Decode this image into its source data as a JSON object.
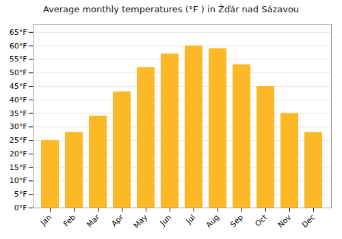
{
  "chart_data": {
    "type": "bar",
    "title": "Average monthly temperatures (°F ) in Žďár nad Sázavou",
    "categories": [
      "Jan",
      "Feb",
      "Mar",
      "Apr",
      "May",
      "Jun",
      "Jul",
      "Aug",
      "Sep",
      "Oct",
      "Nov",
      "Dec"
    ],
    "values": [
      25,
      28,
      34,
      43,
      52,
      57,
      60,
      59,
      53,
      45,
      35,
      28
    ],
    "color": "#FDB827",
    "ylim": [
      0,
      68
    ],
    "yticks": [
      {
        "value": 0,
        "label": "0°F"
      },
      {
        "value": 5,
        "label": "5°F"
      },
      {
        "value": 10,
        "label": "10°F"
      },
      {
        "value": 15,
        "label": "15°F"
      },
      {
        "value": 20,
        "label": "20°F"
      },
      {
        "value": 25,
        "label": "25°F"
      },
      {
        "value": 30,
        "label": "30°F"
      },
      {
        "value": 35,
        "label": "35°F"
      },
      {
        "value": 40,
        "label": "40°F"
      },
      {
        "value": 45,
        "label": "45°F"
      },
      {
        "value": 50,
        "label": "50°F"
      },
      {
        "value": 55,
        "label": "55°F"
      },
      {
        "value": 60,
        "label": "60°F"
      },
      {
        "value": 65,
        "label": "65°F"
      }
    ],
    "grid": true
  }
}
